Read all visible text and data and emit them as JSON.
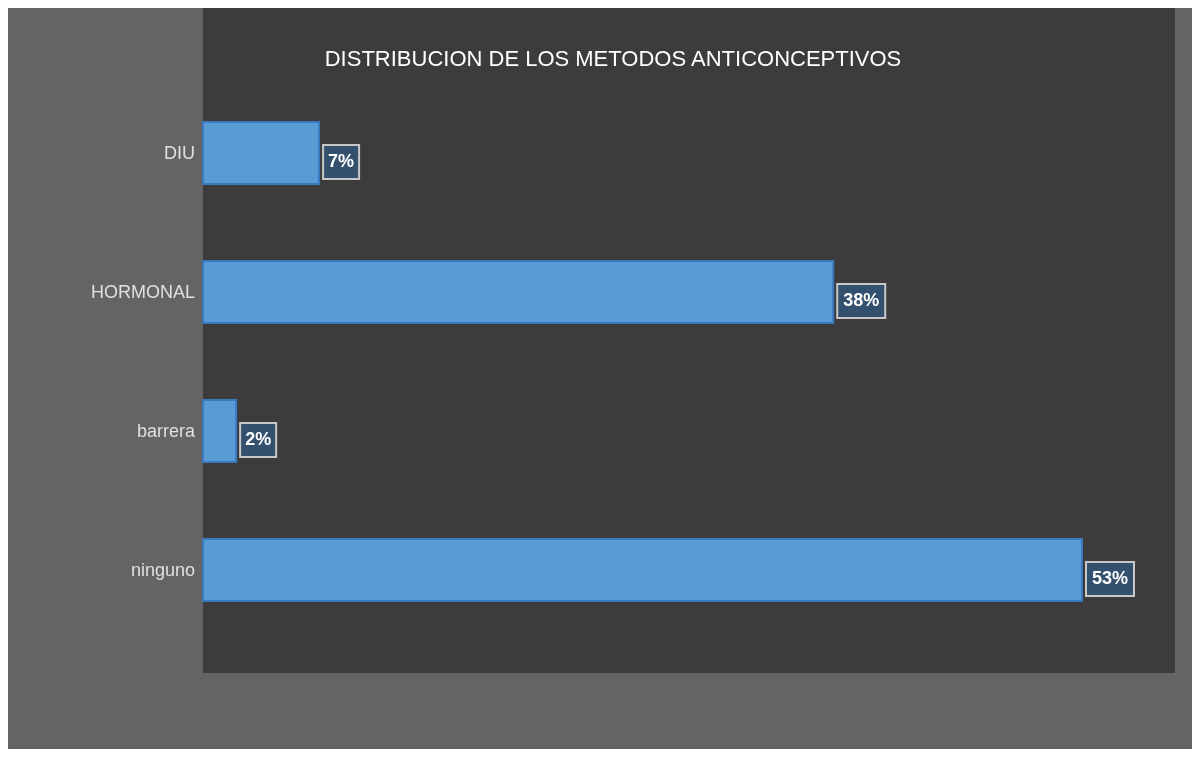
{
  "chart_data": {
    "type": "bar",
    "orientation": "horizontal",
    "title": "DISTRIBUCION DE LOS METODOS ANTICONCEPTIVOS",
    "categories": [
      "DIU",
      "HORMONAL",
      "barrera",
      "ninguno"
    ],
    "values": [
      7,
      38,
      2,
      53
    ],
    "value_labels": [
      "7%",
      "38%",
      "2%",
      "53%"
    ],
    "color": "#5b9bd5"
  }
}
